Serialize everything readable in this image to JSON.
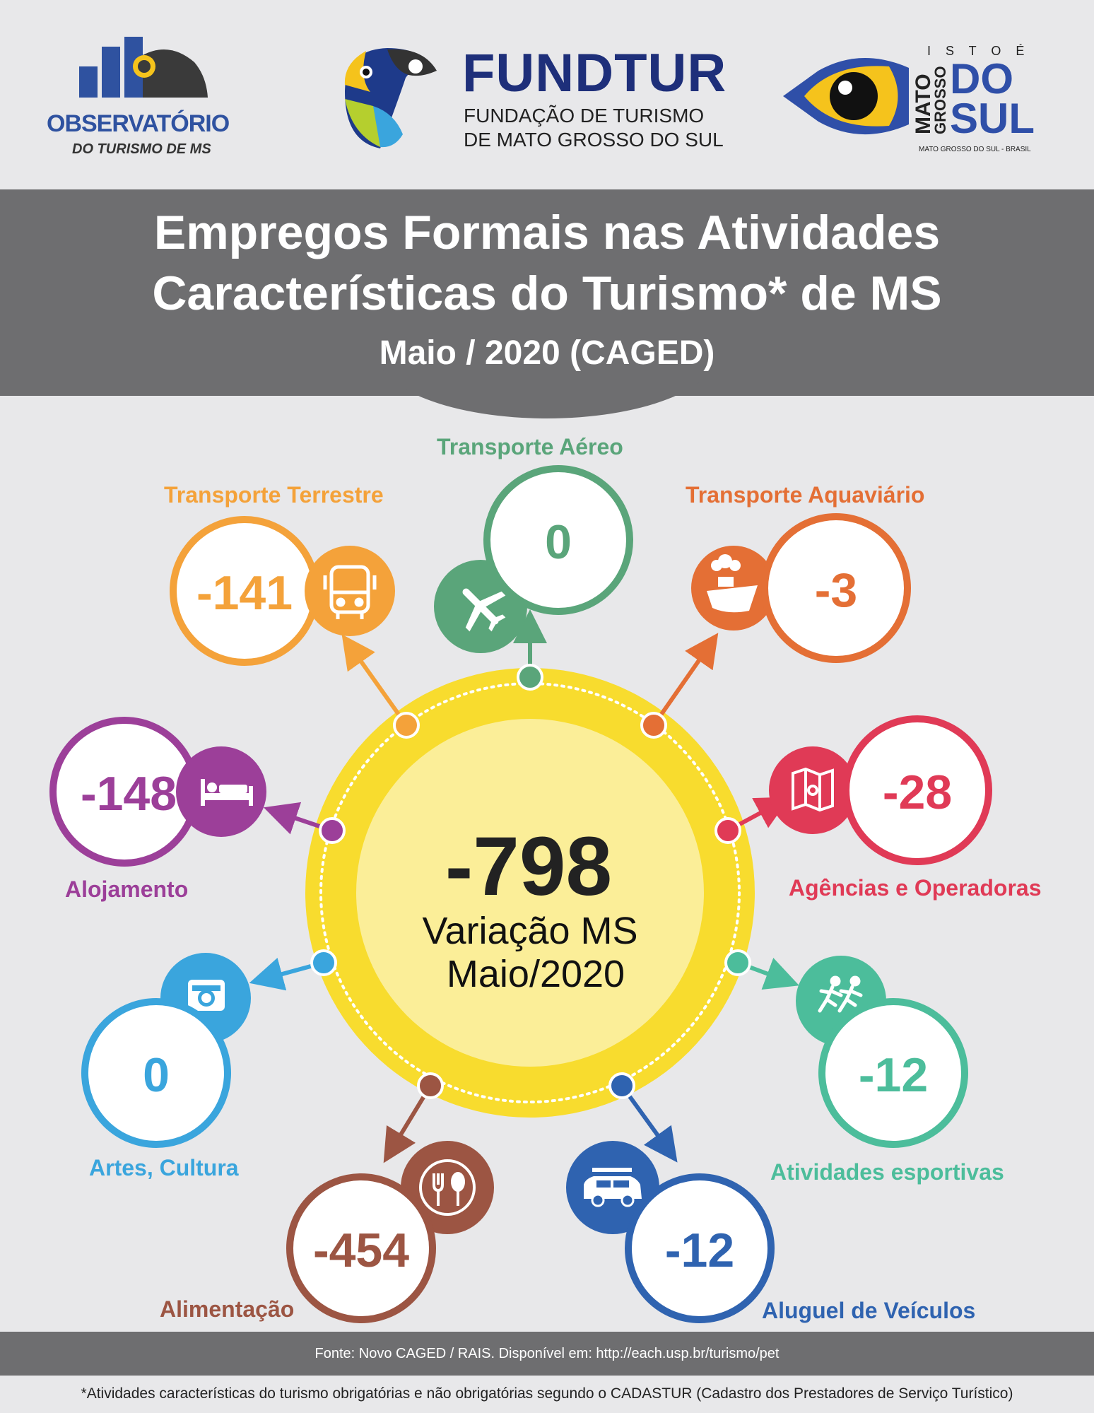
{
  "logos": {
    "observatorio": {
      "name": "OBSERVATÓRIO",
      "sub": "DO TURISMO DE MS"
    },
    "fundtur": {
      "name": "FUNDTUR",
      "line1": "FUNDAÇÃO DE TURISMO",
      "line2": "DE MATO GROSSO DO SUL"
    },
    "ms": {
      "isto_e": "I S T O  É",
      "mato": "MATO",
      "grosso": "GROSSO",
      "do": "DO",
      "sul": "SUL",
      "tag": "MATO GROSSO DO SUL - BRASIL"
    }
  },
  "title": {
    "line1": "Empregos Formais nas Atividades",
    "line2": "Características do Turismo* de MS",
    "subtitle": "Maio / 2020 (CAGED)"
  },
  "center": {
    "value": "-798",
    "label1": "Variação MS",
    "label2": "Maio/2020"
  },
  "categories": [
    {
      "key": "aereo",
      "label": "Transporte Aéreo",
      "value": "0",
      "color": "#5aa57a",
      "icon": "airplane-icon"
    },
    {
      "key": "terrestre",
      "label": "Transporte Terrestre",
      "value": "-141",
      "color": "#f4a23a",
      "icon": "bus-icon"
    },
    {
      "key": "aquaviario",
      "label": "Transporte Aquaviário",
      "value": "-3",
      "color": "#e46f35",
      "icon": "ship-icon"
    },
    {
      "key": "alojamento",
      "label": "Alojamento",
      "value": "-148",
      "color": "#9c3f99",
      "icon": "bed-icon"
    },
    {
      "key": "agencias",
      "label": "Agências e Operadoras",
      "value": "-28",
      "color": "#e03a56",
      "icon": "map-icon"
    },
    {
      "key": "artes",
      "label": "Artes, Cultura",
      "value": "0",
      "color": "#3aa5dd",
      "icon": "camera-icon"
    },
    {
      "key": "esportivas",
      "label": "Atividades esportivas",
      "value": "-12",
      "color": "#4cbd9b",
      "icon": "runners-icon"
    },
    {
      "key": "alimentacao",
      "label": "Alimentação",
      "value": "-454",
      "color": "#9c5543",
      "icon": "fork-spoon-icon"
    },
    {
      "key": "veiculos",
      "label": "Aluguel de Veículos",
      "value": "-12",
      "color": "#2f63b0",
      "icon": "car-icon"
    }
  ],
  "footer": {
    "source": "Fonte: Novo CAGED / RAIS. Disponível em: http://each.usp.br/turismo/pet",
    "note": "*Atividades características do turismo obrigatórias e não obrigatórias segundo o CADASTUR (Cadastro dos Prestadores de Serviço Turístico)"
  }
}
